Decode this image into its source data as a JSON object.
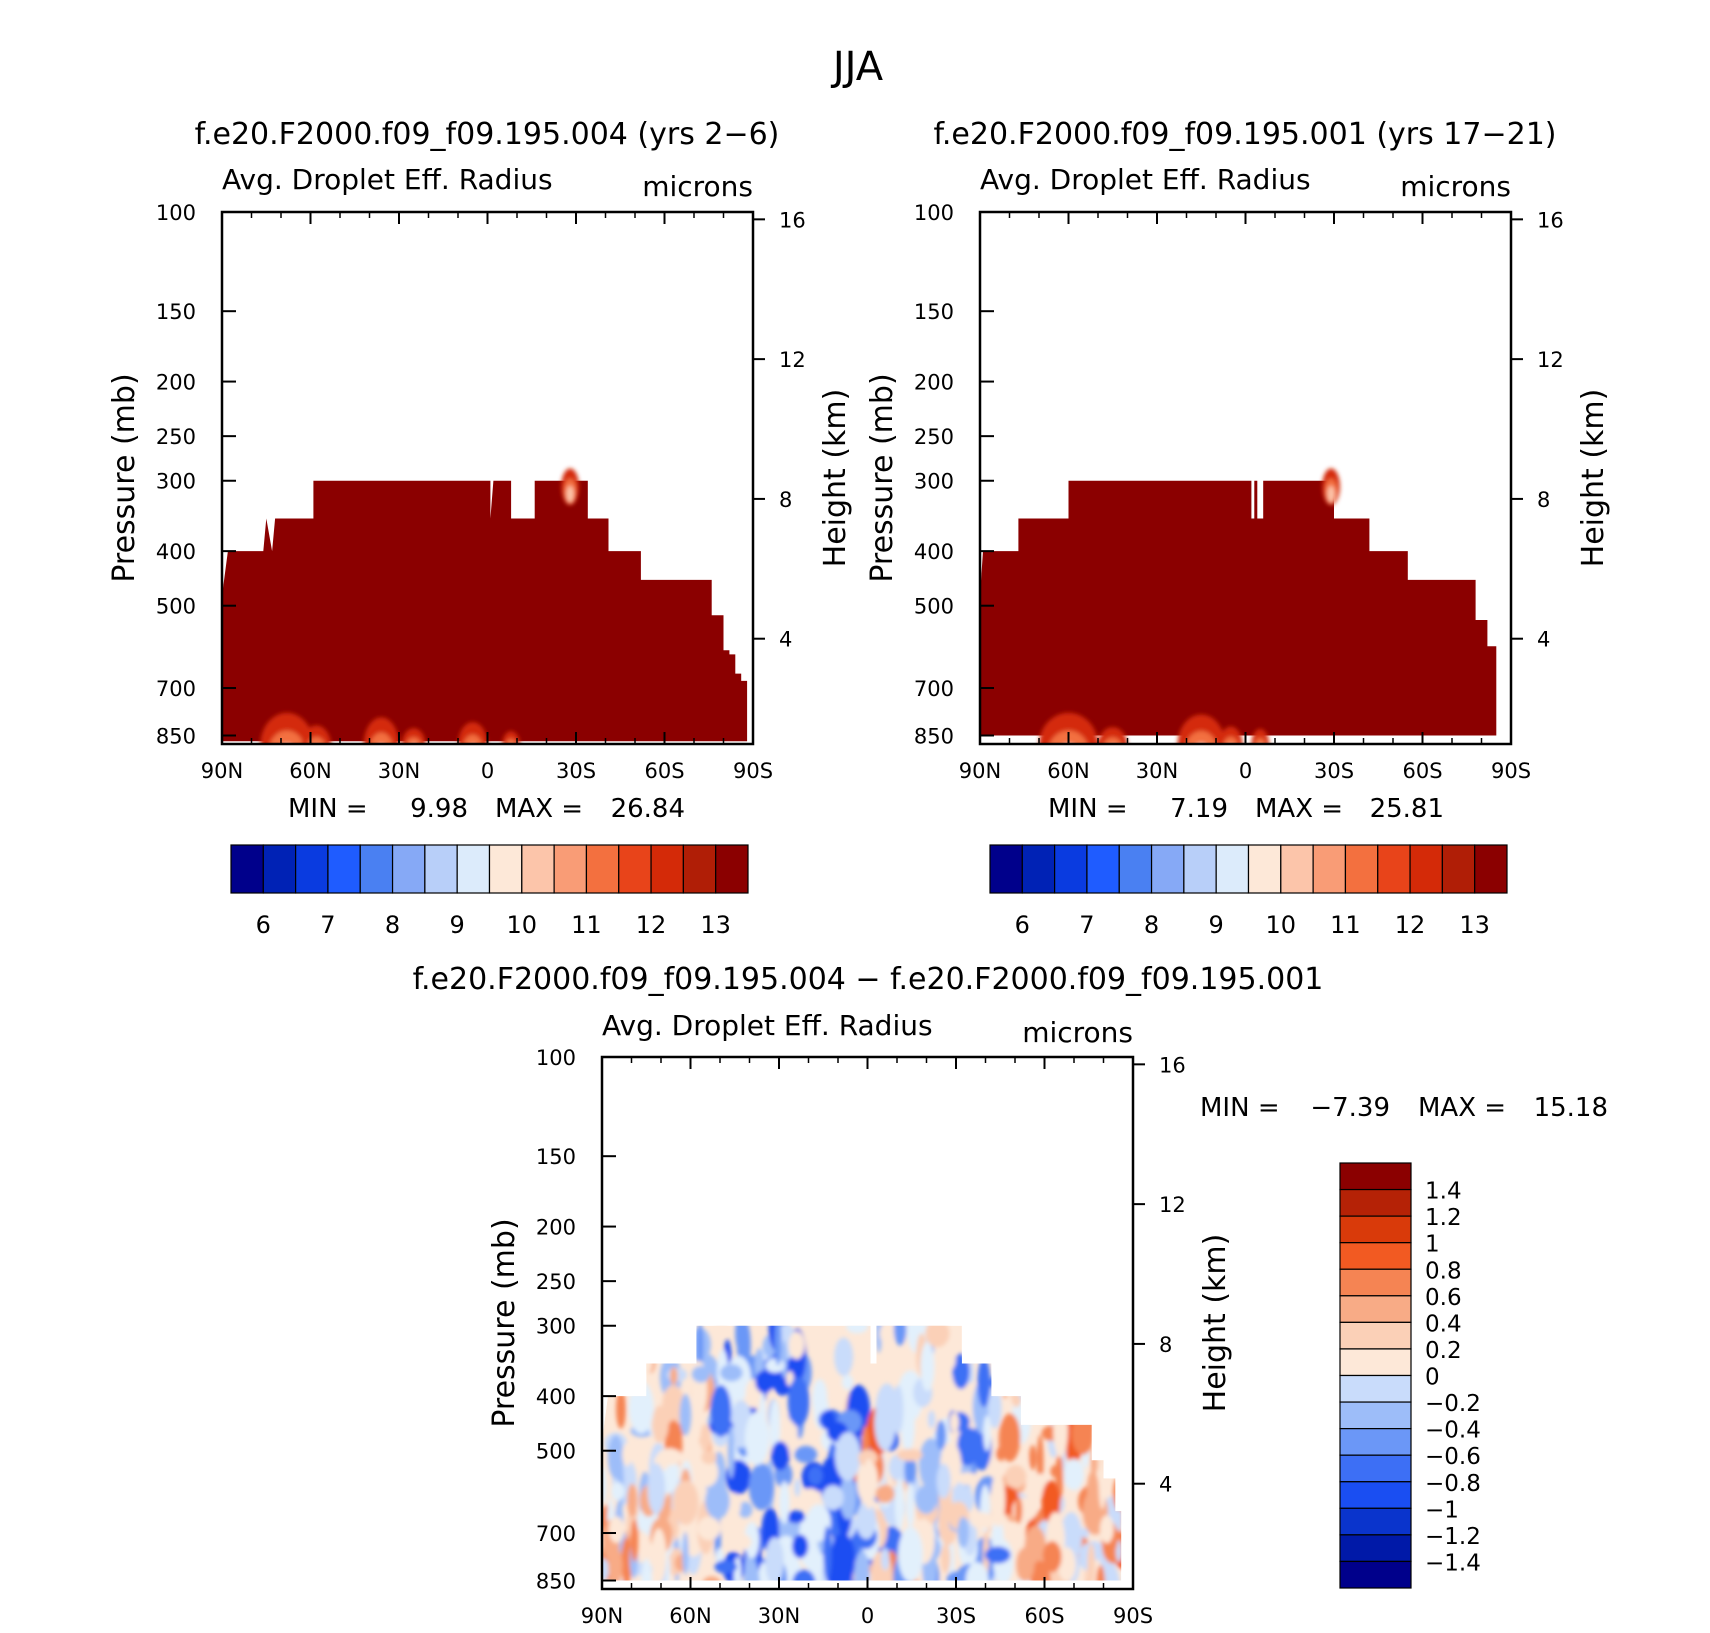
{
  "figure": {
    "title": "JJA"
  },
  "colors": {
    "abs_palette": [
      "#00008b",
      "#0022b5",
      "#0a3be0",
      "#1f5cff",
      "#4a80f2",
      "#86a9f6",
      "#b8cff9",
      "#dcebfb",
      "#fde8d8",
      "#fcc5aa",
      "#f99c76",
      "#f3703f",
      "#e8441a",
      "#d42a08",
      "#b01e06",
      "#8b0000"
    ],
    "diff_palette": [
      "#00008b",
      "#0019a8",
      "#0a34cc",
      "#1a4ef2",
      "#3d6ff5",
      "#6b97f7",
      "#9dbdf9",
      "#c9dcfb",
      "#e2f0fc",
      "#fde8d8",
      "#fbd0b7",
      "#f8ab86",
      "#f58453",
      "#f25a22",
      "#d93a0a",
      "#b52206",
      "#8b0000"
    ]
  },
  "chart_data": [
    {
      "id": "panel1",
      "type": "heatmap",
      "title": "f.e20.F2000.f09_f09.195.004 (yrs 2−6)",
      "subtitle": "Avg. Droplet Eff. Radius",
      "units": "microns",
      "ylabel": "Pressure (mb)",
      "y2label": "Height (km)",
      "x_ticks": [
        "90N",
        "60N",
        "30N",
        "0",
        "30S",
        "60S",
        "90S"
      ],
      "y_ticks": [
        "100",
        "150",
        "200",
        "250",
        "300",
        "400",
        "500",
        "700",
        "850"
      ],
      "y2_ticks": [
        "16",
        "12",
        "8",
        "4"
      ],
      "ylim_mb": [
        880,
        100
      ],
      "min_label": "MIN =",
      "min_value": "9.98",
      "max_label": "MAX =",
      "max_value": "26.84",
      "colorbar_labels": [
        "6",
        "7",
        "8",
        "9",
        "10",
        "11",
        "12",
        "13"
      ],
      "cloud_top_mb": [
        [
          -90,
          480
        ],
        [
          -88,
          400
        ],
        [
          -76,
          400
        ],
        [
          -75,
          350
        ],
        [
          -73,
          400
        ],
        [
          -72,
          350
        ],
        [
          -59,
          350
        ],
        [
          -59,
          300
        ],
        [
          1,
          300
        ],
        [
          1,
          350
        ],
        [
          2,
          300
        ],
        [
          8,
          300
        ],
        [
          8,
          350
        ],
        [
          16,
          350
        ],
        [
          16,
          300
        ],
        [
          34,
          300
        ],
        [
          34,
          350
        ],
        [
          41,
          350
        ],
        [
          41,
          400
        ],
        [
          52,
          400
        ],
        [
          52,
          450
        ],
        [
          76,
          450
        ],
        [
          76,
          520
        ],
        [
          80,
          520
        ],
        [
          80,
          600
        ],
        [
          82,
          600
        ],
        [
          82,
          610
        ],
        [
          84,
          610
        ],
        [
          84,
          660
        ],
        [
          86,
          660
        ],
        [
          86,
          680
        ],
        [
          88,
          680
        ],
        [
          88,
          870
        ],
        [
          -90,
          870
        ]
      ],
      "warm_patches": [
        [
          -68,
          862,
          9,
          14
        ],
        [
          -58,
          866,
          5,
          9
        ],
        [
          -36,
          862,
          6,
          12
        ],
        [
          -25,
          860,
          4,
          7
        ],
        [
          -5,
          862,
          5,
          10
        ],
        [
          8,
          862,
          3,
          6
        ],
        [
          28,
          300,
          3,
          8
        ]
      ]
    },
    {
      "id": "panel2",
      "type": "heatmap",
      "title": "f.e20.F2000.f09_f09.195.001 (yrs 17−21)",
      "subtitle": "Avg. Droplet Eff. Radius",
      "units": "microns",
      "ylabel": "Pressure (mb)",
      "y2label": "Height (km)",
      "x_ticks": [
        "90N",
        "60N",
        "30N",
        "0",
        "30S",
        "60S",
        "90S"
      ],
      "y_ticks": [
        "100",
        "150",
        "200",
        "250",
        "300",
        "400",
        "500",
        "700",
        "850"
      ],
      "y2_ticks": [
        "16",
        "12",
        "8",
        "4"
      ],
      "ylim_mb": [
        880,
        100
      ],
      "min_label": "MIN =",
      "min_value": "7.19",
      "max_label": "MAX =",
      "max_value": "25.81",
      "colorbar_labels": [
        "6",
        "7",
        "8",
        "9",
        "10",
        "11",
        "12",
        "13"
      ],
      "cloud_top_mb": [
        [
          -90,
          480
        ],
        [
          -89,
          400
        ],
        [
          -77,
          400
        ],
        [
          -77,
          350
        ],
        [
          -60,
          350
        ],
        [
          -60,
          300
        ],
        [
          2,
          300
        ],
        [
          2,
          350
        ],
        [
          3,
          350
        ],
        [
          3,
          300
        ],
        [
          4,
          300
        ],
        [
          4,
          350
        ],
        [
          6,
          350
        ],
        [
          6,
          300
        ],
        [
          30,
          300
        ],
        [
          30,
          350
        ],
        [
          42,
          350
        ],
        [
          42,
          400
        ],
        [
          55,
          400
        ],
        [
          55,
          450
        ],
        [
          78,
          450
        ],
        [
          78,
          530
        ],
        [
          82,
          530
        ],
        [
          82,
          590
        ],
        [
          85,
          590
        ],
        [
          85,
          850
        ],
        [
          -90,
          850
        ]
      ],
      "warm_patches": [
        [
          -60,
          862,
          10,
          14
        ],
        [
          -45,
          864,
          5,
          8
        ],
        [
          -15,
          860,
          8,
          13
        ],
        [
          -5,
          862,
          4,
          8
        ],
        [
          5,
          862,
          3,
          7
        ],
        [
          29,
          300,
          3,
          8
        ]
      ]
    },
    {
      "id": "panel3",
      "type": "heatmap",
      "title": "f.e20.F2000.f09_f09.195.004 − f.e20.F2000.f09_f09.195.001",
      "subtitle": "Avg. Droplet Eff. Radius",
      "units": "microns",
      "ylabel": "Pressure (mb)",
      "y2label": "Height (km)",
      "x_ticks": [
        "90N",
        "60N",
        "30N",
        "0",
        "30S",
        "60S",
        "90S"
      ],
      "y_ticks": [
        "100",
        "150",
        "200",
        "250",
        "300",
        "400",
        "500",
        "700",
        "850"
      ],
      "y2_ticks": [
        "16",
        "12",
        "8",
        "4"
      ],
      "ylim_mb": [
        880,
        100
      ],
      "min_label": "MIN =",
      "min_value": "−7.39",
      "max_label": "MAX =",
      "max_value": "15.18",
      "colorbar_labels": [
        "1.4",
        "1.2",
        "1",
        "0.8",
        "0.6",
        "0.4",
        "0.2",
        "0",
        "−0.2",
        "−0.4",
        "−0.6",
        "−0.8",
        "−1",
        "−1.2",
        "−1.4"
      ],
      "cloud_top_mb": [
        [
          -90,
          480
        ],
        [
          -88,
          400
        ],
        [
          -75,
          400
        ],
        [
          -75,
          350
        ],
        [
          -58,
          350
        ],
        [
          -58,
          300
        ],
        [
          1,
          300
        ],
        [
          1,
          350
        ],
        [
          3,
          350
        ],
        [
          3,
          300
        ],
        [
          32,
          300
        ],
        [
          32,
          350
        ],
        [
          42,
          350
        ],
        [
          42,
          400
        ],
        [
          52,
          400
        ],
        [
          52,
          450
        ],
        [
          76,
          450
        ],
        [
          76,
          520
        ],
        [
          80,
          520
        ],
        [
          80,
          560
        ],
        [
          84,
          560
        ],
        [
          84,
          640
        ],
        [
          86,
          640
        ],
        [
          86,
          850
        ],
        [
          -90,
          850
        ]
      ]
    }
  ]
}
